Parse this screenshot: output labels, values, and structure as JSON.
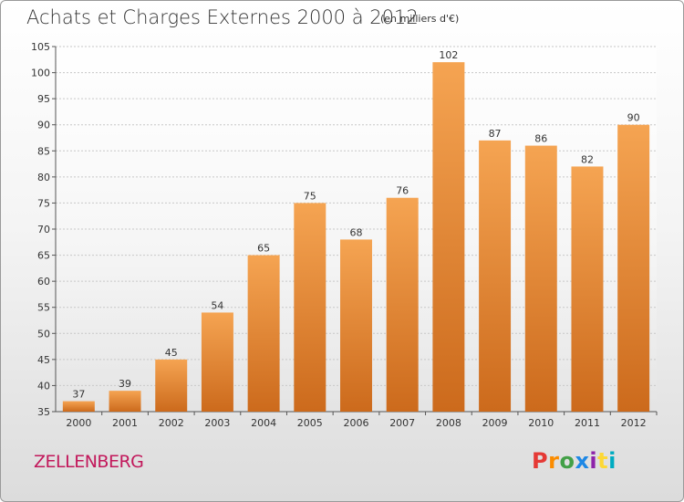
{
  "header": {
    "title": "Achats et Charges Externes 2000 à 2012",
    "subtitle": "(en milliers d'€)"
  },
  "footer": {
    "commune": "ZELLENBERG",
    "logo": [
      "P",
      "r",
      "o",
      "x",
      "i",
      "t",
      "i"
    ]
  },
  "colors": {
    "bar_top": "#f5a452",
    "bar_bottom": "#cc6a1c",
    "commune": "#c2185b",
    "logo": [
      "#e53935",
      "#fb8c00",
      "#43a047",
      "#1e88e5",
      "#8e24aa",
      "#fdd835",
      "#00acc1"
    ]
  },
  "chart_data": {
    "type": "bar",
    "title": "Achats et Charges Externes 2000 à 2012",
    "subtitle": "(en milliers d'€)",
    "xlabel": "",
    "ylabel": "",
    "categories": [
      "2000",
      "2001",
      "2002",
      "2003",
      "2004",
      "2005",
      "2006",
      "2007",
      "2008",
      "2009",
      "2010",
      "2011",
      "2012"
    ],
    "values": [
      37,
      39,
      45,
      54,
      65,
      75,
      68,
      76,
      102,
      87,
      86,
      82,
      90
    ],
    "ylim": [
      35,
      105
    ],
    "yticks": [
      35,
      40,
      45,
      50,
      55,
      60,
      65,
      70,
      75,
      80,
      85,
      90,
      95,
      100,
      105
    ],
    "grid": true,
    "data_labels": true
  }
}
